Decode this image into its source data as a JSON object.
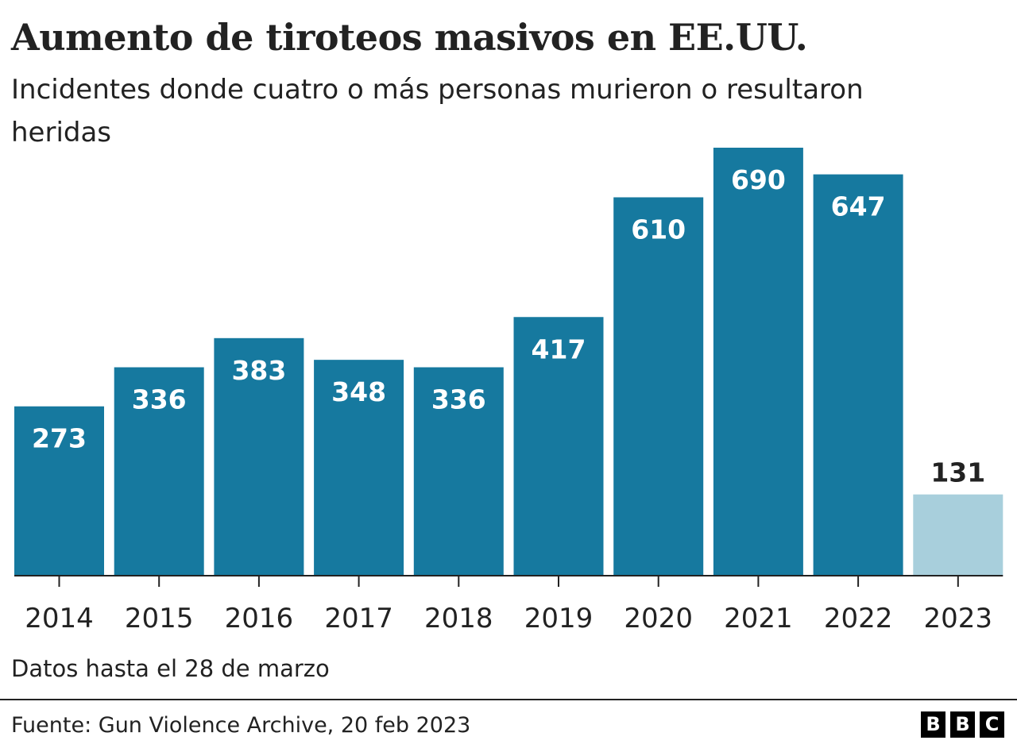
{
  "title": "Aumento de tiroteos masivos en EE.UU.",
  "subtitle": "Incidentes donde cuatro o más personas murieron o resultaron heridas",
  "note": "Datos hasta el 28 de marzo",
  "source": "Fuente: Gun Violence Archive, 20 feb 2023",
  "logo": {
    "letters": [
      "B",
      "B",
      "C"
    ]
  },
  "colors": {
    "bar": "#16799f",
    "bar_partial": "#a8cfdc",
    "label_inside": "#ffffff",
    "label_outside": "#222222",
    "axis": "#222222"
  },
  "chart_data": {
    "type": "bar",
    "title": "Aumento de tiroteos masivos en EE.UU.",
    "subtitle": "Incidentes donde cuatro o más personas murieron o resultaron heridas",
    "xlabel": "",
    "ylabel": "",
    "categories": [
      "2014",
      "2015",
      "2016",
      "2017",
      "2018",
      "2019",
      "2020",
      "2021",
      "2022",
      "2023"
    ],
    "values": [
      273,
      336,
      383,
      348,
      336,
      417,
      610,
      690,
      647,
      131
    ],
    "ylim": [
      0,
      690
    ],
    "grid": false,
    "legend": "none",
    "data_labels": true,
    "highlighted_partial_year": "2023"
  }
}
